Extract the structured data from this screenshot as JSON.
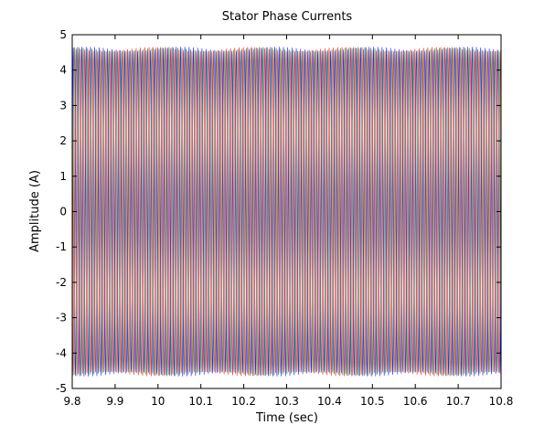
{
  "chart_data": {
    "type": "line",
    "title": "Stator Phase Currents",
    "xlabel": "Time (sec)",
    "ylabel": "Amplitude (A)",
    "xlim": [
      9.8,
      10.8
    ],
    "ylim": [
      -5,
      5
    ],
    "x_ticks": [
      "9.8",
      "9.9",
      "10",
      "10.1",
      "10.2",
      "10.3",
      "10.4",
      "10.5",
      "10.6",
      "10.7",
      "10.8"
    ],
    "y_ticks": [
      "5",
      "4",
      "3",
      "2",
      "1",
      "0",
      "-1",
      "-2",
      "-3",
      "-4",
      "-5"
    ],
    "grid": false,
    "series": [
      {
        "amplitude": 4.6,
        "frequency_hz": 100,
        "phase_deg": 0,
        "color": "#0000ff"
      },
      {
        "amplitude": 4.6,
        "frequency_hz": 100,
        "phase_deg": -120,
        "color": "#008000"
      },
      {
        "amplitude": 4.6,
        "frequency_hz": 100,
        "phase_deg": 120,
        "color": "#ff0000"
      }
    ],
    "envelope_ripple_amplitude": 0.06,
    "colors": {
      "axis": "#000000",
      "background": "#ffffff"
    }
  }
}
